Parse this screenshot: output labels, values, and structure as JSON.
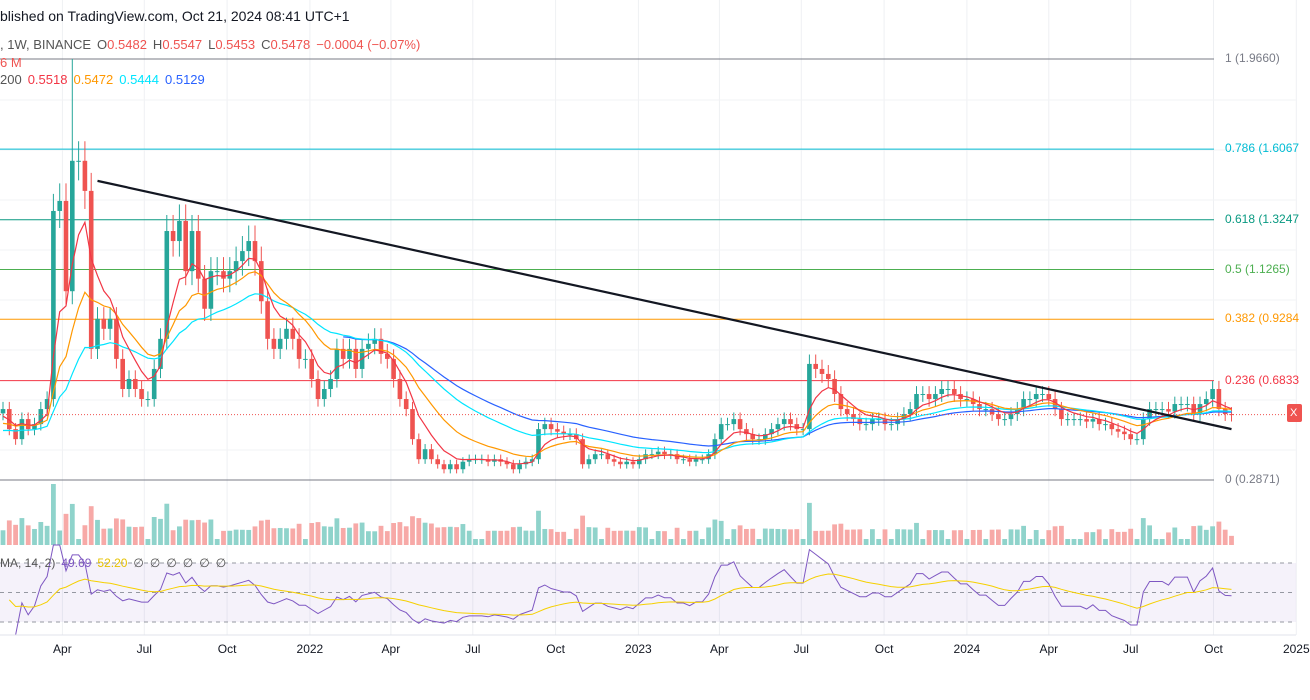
{
  "header": {
    "published": "blished on TradingView.com, Oct 21, 2024 08:41 UTC+1"
  },
  "legend": {
    "symbol": ", 1W, BINANCE",
    "o_label": "O",
    "o": "0.5482",
    "h_label": "H",
    "h": "0.5547",
    "l_label": "L",
    "l": "0.5453",
    "c_label": "C",
    "c": "0.5478",
    "change": "−0.0004 (−0.07%)",
    "volume": "6 M",
    "ma_label": "200",
    "ma1": "0.5518",
    "ma2": "0.5472",
    "ma3": "0.5444",
    "ma4": "0.5129"
  },
  "rsi_legend": {
    "label": "MA, 14, 2)",
    "rsi": "49.69",
    "rsi_ma": "52.20",
    "empty": [
      "∅",
      "∅",
      "∅",
      "∅",
      "∅",
      "∅"
    ]
  },
  "price_tag": "X",
  "colors": {
    "up": "#26a69a",
    "down": "#ef5350",
    "ma1": "#f23645",
    "ma2": "#ff9800",
    "ma3": "#00e5ff",
    "ma4": "#2962ff",
    "rsi": "#7e57c2",
    "rsi_ma": "#f5d000",
    "trendline": "#131722"
  },
  "chart_data": {
    "type": "candlestick",
    "interval": "1W",
    "start_date": "2021-01-25",
    "ylim": [
      0.2871,
      1.966
    ],
    "closes": [
      0.57,
      0.49,
      0.45,
      0.53,
      0.49,
      0.51,
      0.57,
      0.61,
      1.36,
      1.4,
      1.04,
      1.56,
      1.56,
      1.44,
      0.81,
      0.93,
      0.89,
      0.93,
      0.77,
      0.65,
      0.69,
      0.65,
      0.61,
      0.61,
      0.73,
      0.85,
      1.28,
      1.24,
      1.32,
      1.12,
      1.28,
      1.09,
      0.97,
      1.12,
      1.12,
      1.09,
      1.12,
      1.16,
      1.2,
      1.24,
      1.16,
      1.0,
      0.85,
      0.81,
      0.85,
      0.89,
      0.85,
      0.77,
      0.77,
      0.69,
      0.61,
      0.65,
      0.69,
      0.81,
      0.77,
      0.81,
      0.73,
      0.81,
      0.83,
      0.85,
      0.79,
      0.77,
      0.69,
      0.61,
      0.57,
      0.45,
      0.37,
      0.41,
      0.37,
      0.35,
      0.33,
      0.35,
      0.33,
      0.36,
      0.37,
      0.37,
      0.37,
      0.36,
      0.37,
      0.36,
      0.35,
      0.33,
      0.35,
      0.36,
      0.37,
      0.49,
      0.51,
      0.49,
      0.48,
      0.47,
      0.47,
      0.45,
      0.35,
      0.37,
      0.39,
      0.39,
      0.37,
      0.36,
      0.35,
      0.36,
      0.35,
      0.37,
      0.39,
      0.39,
      0.4,
      0.39,
      0.39,
      0.37,
      0.37,
      0.36,
      0.37,
      0.37,
      0.39,
      0.45,
      0.51,
      0.51,
      0.53,
      0.49,
      0.47,
      0.45,
      0.45,
      0.47,
      0.49,
      0.51,
      0.53,
      0.51,
      0.49,
      0.49,
      0.75,
      0.73,
      0.71,
      0.69,
      0.63,
      0.57,
      0.55,
      0.53,
      0.51,
      0.51,
      0.53,
      0.53,
      0.51,
      0.51,
      0.53,
      0.55,
      0.57,
      0.63,
      0.63,
      0.61,
      0.63,
      0.65,
      0.65,
      0.63,
      0.61,
      0.61,
      0.59,
      0.57,
      0.57,
      0.55,
      0.53,
      0.53,
      0.55,
      0.57,
      0.61,
      0.61,
      0.63,
      0.63,
      0.61,
      0.57,
      0.53,
      0.53,
      0.53,
      0.53,
      0.52,
      0.53,
      0.51,
      0.51,
      0.49,
      0.48,
      0.47,
      0.45,
      0.45,
      0.53,
      0.57,
      0.57,
      0.57,
      0.56,
      0.59,
      0.59,
      0.59,
      0.55,
      0.59,
      0.61,
      0.65,
      0.57,
      0.55,
      0.5478
    ],
    "notable_highs": [
      {
        "date": "2021-04-12",
        "high": 1.966
      }
    ],
    "last_price": 0.5478,
    "fib_levels": [
      {
        "ratio": "1",
        "price": "1.9660",
        "label": "1 (1.9660)",
        "color": "#787b86"
      },
      {
        "ratio": "0.786",
        "price": "1.6067",
        "label": "0.786 (1.6067",
        "color": "#00bcd4"
      },
      {
        "ratio": "0.618",
        "price": "1.3247",
        "label": "0.618 (1.3247",
        "color": "#089981"
      },
      {
        "ratio": "0.5",
        "price": "1.1265",
        "label": "0.5 (1.1265)",
        "color": "#4caf50"
      },
      {
        "ratio": "0.382",
        "price": "0.9284",
        "label": "0.382 (0.9284",
        "color": "#ff9800"
      },
      {
        "ratio": "0.236",
        "price": "0.6833",
        "label": "0.236 (0.6833",
        "color": "#f23645"
      },
      {
        "ratio": "0",
        "price": "0.2871",
        "label": "0 (0.2871)",
        "color": "#787b86"
      }
    ],
    "trendline": {
      "start": {
        "date": "2021-05-10",
        "price": 1.48
      },
      "end": {
        "date": "2024-10-21",
        "price": 0.49
      }
    },
    "x_ticks": [
      {
        "label": "Apr",
        "date": "2021-04-01"
      },
      {
        "label": "Jul",
        "date": "2021-07-01"
      },
      {
        "label": "Oct",
        "date": "2021-10-01"
      },
      {
        "label": "2022",
        "date": "2022-01-01"
      },
      {
        "label": "Apr",
        "date": "2022-04-01"
      },
      {
        "label": "Jul",
        "date": "2022-07-01"
      },
      {
        "label": "Oct",
        "date": "2022-10-01"
      },
      {
        "label": "2023",
        "date": "2023-01-01"
      },
      {
        "label": "Apr",
        "date": "2023-04-01"
      },
      {
        "label": "Jul",
        "date": "2023-07-01"
      },
      {
        "label": "Oct",
        "date": "2023-10-01"
      },
      {
        "label": "2024",
        "date": "2024-01-01"
      },
      {
        "label": "Apr",
        "date": "2024-04-01"
      },
      {
        "label": "Jul",
        "date": "2024-07-01"
      },
      {
        "label": "Oct",
        "date": "2024-10-01"
      },
      {
        "label": "2025",
        "date": "2025-01-01"
      }
    ],
    "rsi_bands": [
      70,
      50,
      30
    ]
  }
}
